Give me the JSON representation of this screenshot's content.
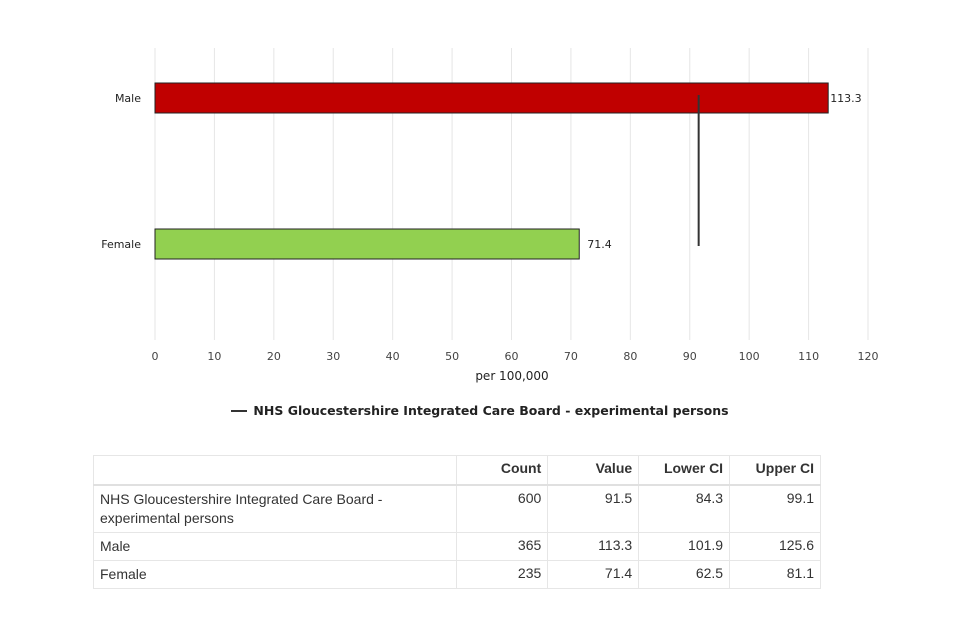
{
  "chart_data": {
    "type": "bar",
    "orientation": "horizontal",
    "categories": [
      "Male",
      "Female"
    ],
    "values": [
      113.3,
      71.4
    ],
    "bar_colors": [
      "#c00000",
      "#92d050"
    ],
    "data_labels": [
      "113.3",
      "71.4"
    ],
    "xlabel": "per 100,000",
    "xlim": [
      0,
      120
    ],
    "xticks": [
      0,
      10,
      20,
      30,
      40,
      50,
      60,
      70,
      80,
      90,
      100,
      110,
      120
    ],
    "grid": true,
    "reference_line": {
      "name": "NHS Gloucestershire Integrated Care Board - experimental persons",
      "value": 91.5,
      "color": "#333333"
    },
    "legend_position": "bottom"
  },
  "table": {
    "headers": [
      "",
      "Count",
      "Value",
      "Lower CI",
      "Upper CI"
    ],
    "rows": [
      {
        "name": "NHS Gloucestershire Integrated Care Board - experimental persons",
        "count": "600",
        "value": "91.5",
        "lower": "84.3",
        "upper": "99.1"
      },
      {
        "name": "Male",
        "count": "365",
        "value": "113.3",
        "lower": "101.9",
        "upper": "125.6"
      },
      {
        "name": "Female",
        "count": "235",
        "value": "71.4",
        "lower": "62.5",
        "upper": "81.1"
      }
    ]
  }
}
